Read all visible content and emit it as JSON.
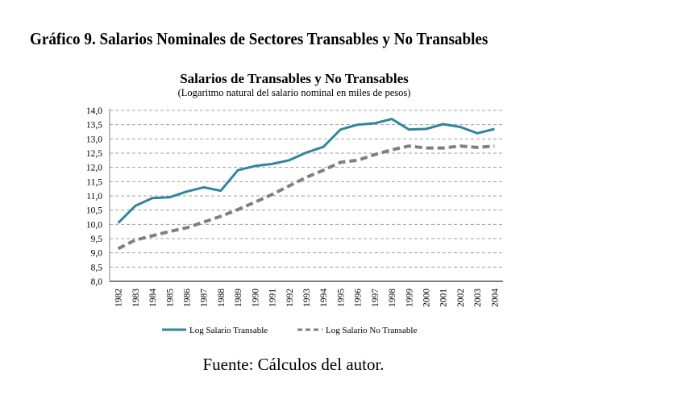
{
  "figure": {
    "title": "Gráfico 9. Salarios Nominales de Sectores Transables y No Transables",
    "source": "Fuente: Cálculos del autor."
  },
  "colors": {
    "transable": "#31859C",
    "no_transable": "#808080",
    "grid": "#A0A0A0",
    "axis": "#808080"
  },
  "chart_data": {
    "type": "line",
    "title": "Salarios de Transables y No Transables",
    "subtitle": "(Logaritmo natural del salario nominal en miles de pesos)",
    "xlabel": "",
    "ylabel": "",
    "ylim": [
      8.0,
      14.0
    ],
    "yticks": [
      "8,0",
      "8,5",
      "9,0",
      "9,5",
      "10,0",
      "10,5",
      "11,0",
      "11,5",
      "12,0",
      "12,5",
      "13,0",
      "13,5",
      "14,0"
    ],
    "grid": true,
    "legend_position": "bottom",
    "categories": [
      "1982",
      "1983",
      "1984",
      "1985",
      "1986",
      "1987",
      "1988",
      "1989",
      "1990",
      "1991",
      "1992",
      "1993",
      "1994",
      "1995",
      "1996",
      "1997",
      "1998",
      "1999",
      "2000",
      "2001",
      "2002",
      "2003",
      "2004"
    ],
    "series": [
      {
        "name": "Log Salario Transable",
        "style": "solid",
        "values": [
          10.05,
          10.65,
          10.92,
          10.95,
          11.15,
          11.3,
          11.18,
          11.9,
          12.05,
          12.12,
          12.25,
          12.52,
          12.72,
          13.33,
          13.5,
          13.55,
          13.7,
          13.33,
          13.35,
          13.52,
          13.42,
          13.2,
          13.35
        ]
      },
      {
        "name": "Log Salario No Transable",
        "style": "dashed",
        "values": [
          9.15,
          9.45,
          9.6,
          9.75,
          9.88,
          10.08,
          10.28,
          10.52,
          10.78,
          11.05,
          11.35,
          11.65,
          11.9,
          12.18,
          12.25,
          12.45,
          12.62,
          12.75,
          12.68,
          12.68,
          12.75,
          12.7,
          12.75
        ]
      }
    ]
  }
}
